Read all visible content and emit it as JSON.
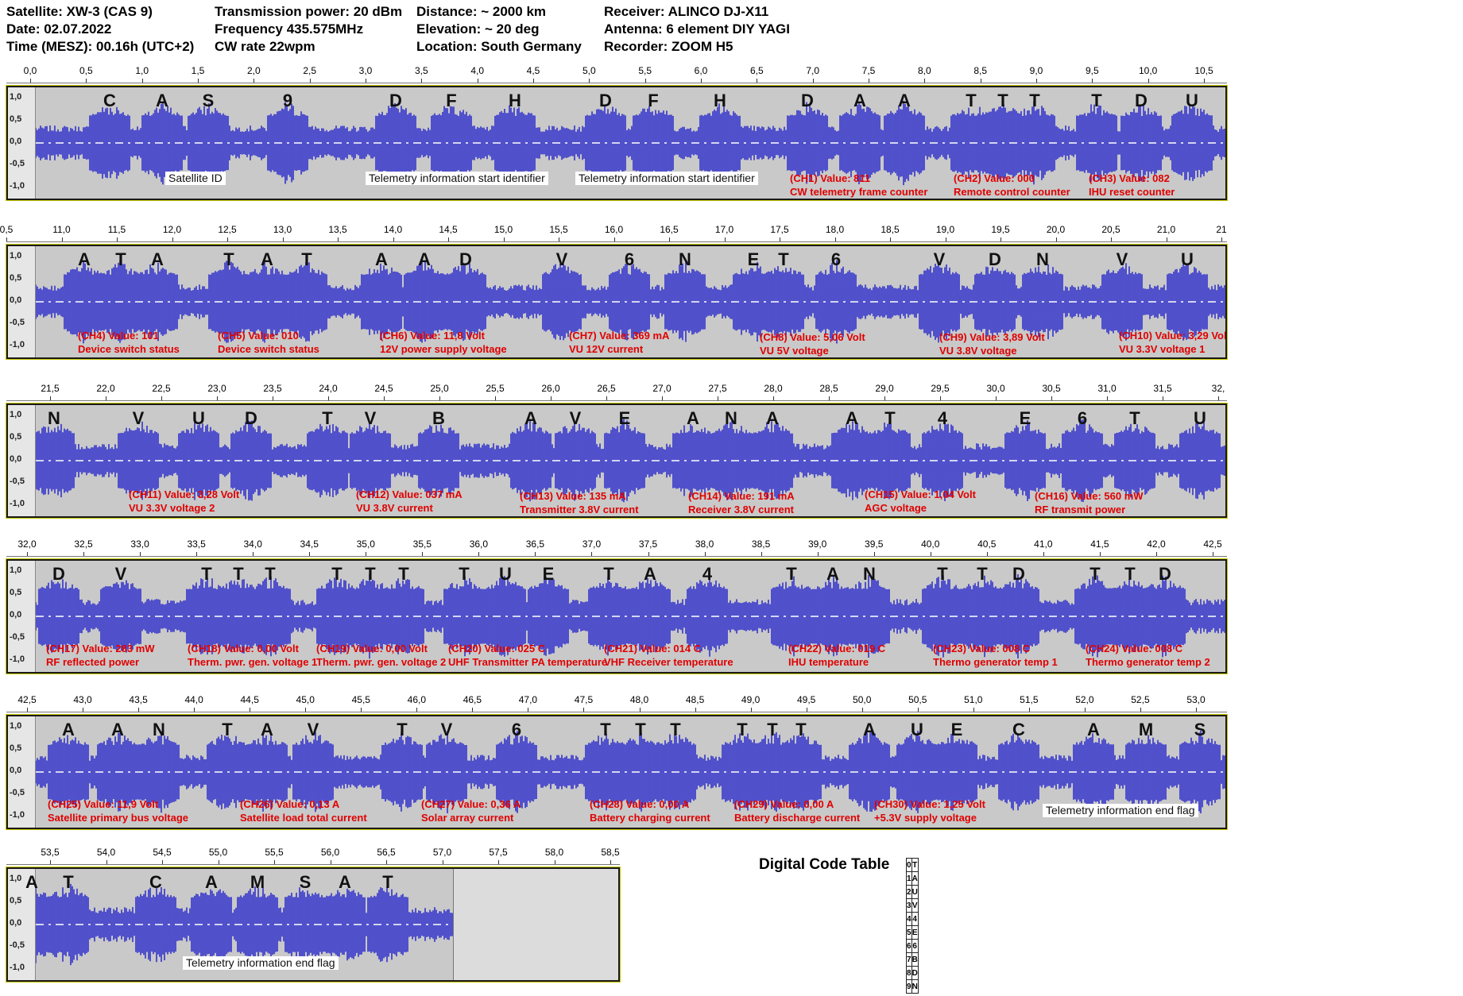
{
  "header": {
    "col1": [
      "Satellite: XW-3 (CAS 9)",
      "Date: 02.07.2022",
      "Time (MESZ): 00.16h (UTC+2)"
    ],
    "col2": [
      "Transmission power: 20 dBm",
      "Frequency 435.575MHz",
      "CW rate 22wpm"
    ],
    "col3": [
      "Distance: ~ 2000 km",
      "Elevation: ~ 20 deg",
      "Location: South Germany"
    ],
    "col4": [
      "Receiver: ALINCO DJ-X11",
      "Antenna: 6 element DIY YAGI",
      "Recorder: ZOOM H5"
    ]
  },
  "y_labels": [
    "1,0",
    "0,5",
    "0,0",
    "-0,5",
    "-1,0"
  ],
  "colors": {
    "waveform": "#3333cc",
    "annotation": "#e00000",
    "track_bg": "#c9c9c9"
  },
  "rows": [
    {
      "ticks": [
        "0,0",
        "0,5",
        "1,0",
        "1,5",
        "2,0",
        "2,5",
        "3,0",
        "3,5",
        "4,0",
        "4,5",
        "5,0",
        "5,5",
        "6,0",
        "6,5",
        "7,0",
        "7,5",
        "8,0",
        "8,5",
        "9,0",
        "9,5",
        "10,0",
        "10,5"
      ],
      "letters": [
        "C",
        "A",
        "S",
        "9",
        "D",
        "F",
        "H",
        "D",
        "F",
        "H",
        "D",
        "A",
        "A",
        "T",
        "T",
        "T",
        "T",
        "D",
        "U"
      ],
      "annotations": [
        {
          "lines": [
            "(CH1) Value: 811",
            "CW telemetry frame counter"
          ]
        },
        {
          "lines": [
            "(CH2) Value: 000",
            "Remote control counter"
          ]
        },
        {
          "lines": [
            "(CH3) Value: 082",
            "IHU reset counter"
          ]
        }
      ],
      "notes": [
        "Satellite ID",
        "Telemetry information start identifier",
        "Telemetry information start identifier"
      ]
    },
    {
      "ticks": [
        "0,5",
        "11,0",
        "11,5",
        "12,0",
        "12,5",
        "13,0",
        "13,5",
        "14,0",
        "14,5",
        "15,0",
        "15,5",
        "16,0",
        "16,5",
        "17,0",
        "17,5",
        "18,0",
        "18,5",
        "19,0",
        "19,5",
        "20,0",
        "20,5",
        "21,0",
        "21"
      ],
      "letters": [
        "A",
        "T",
        "A",
        "T",
        "A",
        "T",
        "A",
        "A",
        "D",
        "V",
        "6",
        "N",
        "E",
        "T",
        "6",
        "V",
        "D",
        "N",
        "V",
        "U"
      ],
      "annotations": [
        {
          "lines": [
            "(CH4) Value: 101",
            "Device switch status"
          ]
        },
        {
          "lines": [
            "(CH5) Value: 010",
            "Device switch status"
          ]
        },
        {
          "lines": [
            "(CH6) Value: 11,8 Volt",
            "12V power supply voltage"
          ]
        },
        {
          "lines": [
            "(CH7) Value: 369 mA",
            "VU 12V current"
          ]
        },
        {
          "lines": [
            "(CH8) Value: 5,06 Volt",
            "VU 5V voltage"
          ]
        },
        {
          "lines": [
            "(CH9) Value: 3,89 Volt",
            "VU 3.8V voltage"
          ]
        },
        {
          "lines": [
            "(CH10) Value: 3,29 Volt",
            "VU 3.3V voltage 1"
          ]
        }
      ],
      "notes": []
    },
    {
      "ticks": [
        "21,5",
        "22,0",
        "22,5",
        "23,0",
        "23,5",
        "24,0",
        "24,5",
        "25,0",
        "25,5",
        "26,0",
        "26,5",
        "27,0",
        "27,5",
        "28,0",
        "28,5",
        "29,0",
        "29,5",
        "30,0",
        "30,5",
        "31,0",
        "31,5",
        "32,"
      ],
      "letters": [
        "N",
        "V",
        "U",
        "D",
        "T",
        "V",
        "B",
        "A",
        "V",
        "E",
        "A",
        "N",
        "A",
        "A",
        "T",
        "4",
        "E",
        "6",
        "T",
        "U"
      ],
      "annotations": [
        {
          "lines": [
            "(CH11) Value: 3,28 Volt",
            "VU 3.3V voltage 2"
          ]
        },
        {
          "lines": [
            "(CH12) Value: 037 mA",
            "VU 3.8V current"
          ]
        },
        {
          "lines": [
            "(CH13) Value: 135 mA",
            "Transmitter 3.8V current"
          ]
        },
        {
          "lines": [
            "(CH14) Value: 191 mA",
            "Receiver 3.8V current"
          ]
        },
        {
          "lines": [
            "(CH15) Value: 1,04 Volt",
            "AGC voltage"
          ]
        },
        {
          "lines": [
            "(CH16) Value: 560 mW",
            "RF transmit power"
          ]
        }
      ],
      "notes": []
    },
    {
      "ticks": [
        "32,0",
        "32,5",
        "33,0",
        "33,5",
        "34,0",
        "34,5",
        "35,0",
        "35,5",
        "36,0",
        "36,5",
        "37,0",
        "37,5",
        "38,0",
        "38,5",
        "39,0",
        "39,5",
        "40,0",
        "40,5",
        "41,0",
        "41,5",
        "42,0",
        "42,5"
      ],
      "letters": [
        "D",
        "V",
        "T",
        "T",
        "T",
        "T",
        "T",
        "T",
        "T",
        "U",
        "E",
        "T",
        "A",
        "4",
        "T",
        "A",
        "N",
        "T",
        "T",
        "D",
        "T",
        "T",
        "D"
      ],
      "annotations": [
        {
          "lines": [
            "(CH17) Value: 283 mW",
            "RF reflected power"
          ]
        },
        {
          "lines": [
            "(CH18) Value: 0,00 Volt",
            "Therm. pwr. gen. voltage 1"
          ]
        },
        {
          "lines": [
            "(CH19) Value: 0,00 Volt",
            "Therm. pwr. gen. voltage 2"
          ]
        },
        {
          "lines": [
            "(CH20) Value: 025 C",
            "UHF Transmitter PA temperature"
          ]
        },
        {
          "lines": [
            "(CH21) Value: 014 C",
            "VHF Receiver temperature"
          ]
        },
        {
          "lines": [
            "(CH22) Value: 019 C",
            "IHU temperature"
          ]
        },
        {
          "lines": [
            "(CH23) Value: 008 C",
            "Thermo generator temp 1"
          ]
        },
        {
          "lines": [
            "(CH24) Value: 008 C",
            "Thermo generator temp 2"
          ]
        }
      ],
      "notes": []
    },
    {
      "ticks": [
        "42,5",
        "43,0",
        "43,5",
        "44,0",
        "44,5",
        "45,0",
        "45,5",
        "46,0",
        "46,5",
        "47,0",
        "47,5",
        "48,0",
        "48,5",
        "49,0",
        "49,5",
        "50,0",
        "50,5",
        "51,0",
        "51,5",
        "52,0",
        "52,5",
        "53,0"
      ],
      "letters": [
        "A",
        "A",
        "N",
        "T",
        "A",
        "V",
        "T",
        "V",
        "6",
        "T",
        "T",
        "T",
        "T",
        "T",
        "T",
        "A",
        "U",
        "E",
        "C",
        "A",
        "M",
        "S"
      ],
      "annotations": [
        {
          "lines": [
            "(CH25) Value: 11,9 Volt",
            "Satellite primary bus voltage"
          ]
        },
        {
          "lines": [
            "(CH26) Value: 0,13 A",
            "Satellite load total current"
          ]
        },
        {
          "lines": [
            "(CH27) Value: 0,36 A",
            "Solar array current"
          ]
        },
        {
          "lines": [
            "(CH28) Value: 0,00 A",
            "Battery charging current"
          ]
        },
        {
          "lines": [
            "(CH29) Value: 0,00 A",
            "Battery discharge current"
          ]
        },
        {
          "lines": [
            "(CH30) Value: 1,25 Volt",
            "+5.3V supply voltage"
          ]
        }
      ],
      "notes": [
        "Telemetry information end flag"
      ]
    },
    {
      "ticks": [
        "53,5",
        "54,0",
        "54,5",
        "55,0",
        "55,5",
        "56,0",
        "56,5",
        "57,0",
        "57,5",
        "58,0",
        "58,5"
      ],
      "letters": [
        "A",
        "T",
        "C",
        "A",
        "M",
        "S",
        "A",
        "T"
      ],
      "annotations": [],
      "notes": [
        "Telemetry information end flag"
      ]
    }
  ],
  "digital_code_table": {
    "title": "Digital Code Table",
    "rows": [
      [
        "0",
        "T"
      ],
      [
        "1",
        "A"
      ],
      [
        "2",
        "U"
      ],
      [
        "3",
        "V"
      ],
      [
        "4",
        "4"
      ],
      [
        "5",
        "E"
      ],
      [
        "6",
        "6"
      ],
      [
        "7",
        "B"
      ],
      [
        "8",
        "D"
      ],
      [
        "9",
        "N"
      ]
    ]
  }
}
